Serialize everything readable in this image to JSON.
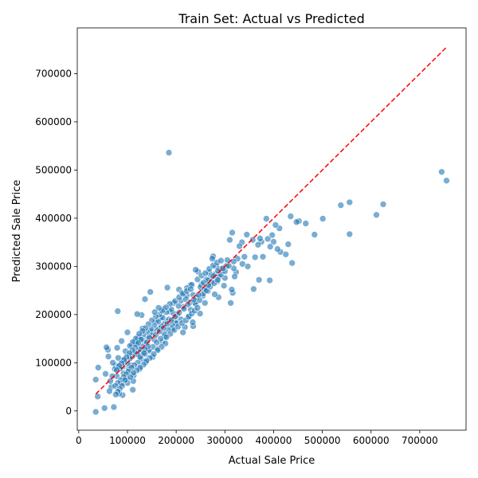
{
  "chart_data": {
    "type": "scatter",
    "title": "Train Set: Actual vs Predicted",
    "xlabel": "Actual Sale Price",
    "ylabel": "Predicted Sale Price",
    "xlim": [
      -3000,
      795000
    ],
    "ylim": [
      -40000,
      795000
    ],
    "xticks": [
      0,
      100000,
      200000,
      300000,
      400000,
      500000,
      600000,
      700000
    ],
    "yticks": [
      0,
      100000,
      200000,
      300000,
      400000,
      500000,
      600000,
      700000
    ],
    "xtick_labels": [
      "0",
      "100000",
      "200000",
      "300000",
      "400000",
      "500000",
      "600000",
      "700000"
    ],
    "ytick_labels": [
      "0",
      "100000",
      "200000",
      "300000",
      "400000",
      "500000",
      "600000",
      "700000"
    ],
    "grid": false,
    "point_color": "#1f77b4",
    "reference_line": {
      "label": "",
      "x": [
        34900,
        755000
      ],
      "y": [
        34900,
        755000
      ],
      "color": "#ff0000",
      "style": "dashed"
    },
    "points": [
      [
        745000,
        496000
      ],
      [
        755000,
        478000
      ],
      [
        625000,
        429000
      ],
      [
        611000,
        407000
      ],
      [
        556000,
        433000
      ],
      [
        538000,
        427000
      ],
      [
        556000,
        367000
      ],
      [
        501000,
        399000
      ],
      [
        484000,
        366000
      ],
      [
        466000,
        389000
      ],
      [
        452000,
        394000
      ],
      [
        447000,
        392000
      ],
      [
        435000,
        404000
      ],
      [
        438000,
        307000
      ],
      [
        430000,
        346000
      ],
      [
        425000,
        325000
      ],
      [
        414000,
        330000
      ],
      [
        412000,
        379000
      ],
      [
        408000,
        336000
      ],
      [
        404000,
        386000
      ],
      [
        400000,
        351000
      ],
      [
        397000,
        365000
      ],
      [
        392000,
        271000
      ],
      [
        393000,
        341000
      ],
      [
        388000,
        357000
      ],
      [
        385000,
        399000
      ],
      [
        378000,
        320000
      ],
      [
        375000,
        351000
      ],
      [
        372000,
        358000
      ],
      [
        370000,
        272000
      ],
      [
        368000,
        345000
      ],
      [
        362000,
        319000
      ],
      [
        359000,
        253000
      ],
      [
        357000,
        355000
      ],
      [
        347000,
        300000
      ],
      [
        345000,
        366000
      ],
      [
        340000,
        320000
      ],
      [
        336000,
        305000
      ],
      [
        335000,
        350000
      ],
      [
        330000,
        342000
      ],
      [
        326000,
        316000
      ],
      [
        323000,
        288000
      ],
      [
        320000,
        279000
      ],
      [
        318000,
        296000
      ],
      [
        316000,
        245000
      ],
      [
        314000,
        252000
      ],
      [
        312000,
        224000
      ],
      [
        315000,
        370000
      ],
      [
        310000,
        355000
      ],
      [
        305000,
        313000
      ],
      [
        303000,
        301000
      ],
      [
        300000,
        276000
      ],
      [
        298000,
        260000
      ],
      [
        295000,
        291000
      ],
      [
        290000,
        295000
      ],
      [
        287000,
        236000
      ],
      [
        285000,
        269000
      ],
      [
        282000,
        300000
      ],
      [
        279000,
        242000
      ],
      [
        276000,
        321000
      ],
      [
        274000,
        316000
      ],
      [
        271000,
        278000
      ],
      [
        268000,
        287000
      ],
      [
        265000,
        249000
      ],
      [
        262000,
        273000
      ],
      [
        259000,
        224000
      ],
      [
        255000,
        239000
      ],
      [
        252000,
        262000
      ],
      [
        249000,
        202000
      ],
      [
        245000,
        289000
      ],
      [
        240000,
        293000
      ],
      [
        238000,
        226000
      ],
      [
        235000,
        176000
      ],
      [
        234000,
        184000
      ],
      [
        229000,
        261000
      ],
      [
        225000,
        195000
      ],
      [
        222000,
        240000
      ],
      [
        218000,
        174000
      ],
      [
        214000,
        163000
      ],
      [
        210000,
        229000
      ],
      [
        206000,
        252000
      ],
      [
        202000,
        199000
      ],
      [
        198000,
        187000
      ],
      [
        195000,
        224000
      ],
      [
        192000,
        170000
      ],
      [
        188000,
        206000
      ],
      [
        185000,
        536000
      ],
      [
        182000,
        256000
      ],
      [
        180000,
        186000
      ],
      [
        177000,
        155000
      ],
      [
        174000,
        211000
      ],
      [
        171000,
        143000
      ],
      [
        168000,
        193000
      ],
      [
        165000,
        171000
      ],
      [
        162000,
        129000
      ],
      [
        158000,
        186000
      ],
      [
        155000,
        148000
      ],
      [
        152000,
        112000
      ],
      [
        149000,
        165000
      ],
      [
        147000,
        247000
      ],
      [
        144000,
        128000
      ],
      [
        141000,
        153000
      ],
      [
        138000,
        101000
      ],
      [
        136000,
        232000
      ],
      [
        134000,
        144000
      ],
      [
        131000,
        171000
      ],
      [
        129000,
        199000
      ],
      [
        127000,
        123000
      ],
      [
        125000,
        87000
      ],
      [
        122000,
        153000
      ],
      [
        120000,
        201000
      ],
      [
        118000,
        118000
      ],
      [
        116000,
        145000
      ],
      [
        113000,
        74000
      ],
      [
        111000,
        44000
      ],
      [
        109000,
        137000
      ],
      [
        107000,
        95000
      ],
      [
        104000,
        115000
      ],
      [
        102000,
        86000
      ],
      [
        100000,
        163000
      ],
      [
        98000,
        67000
      ],
      [
        96000,
        124000
      ],
      [
        94000,
        108000
      ],
      [
        92000,
        78000
      ],
      [
        90000,
        33000
      ],
      [
        88000,
        145000
      ],
      [
        87000,
        56000
      ],
      [
        85000,
        97000
      ],
      [
        83000,
        36000
      ],
      [
        81000,
        110000
      ],
      [
        80000,
        207000
      ],
      [
        79000,
        131000
      ],
      [
        78000,
        72000
      ],
      [
        76000,
        94000
      ],
      [
        74000,
        87000
      ],
      [
        72000,
        8000
      ],
      [
        70000,
        100000
      ],
      [
        69000,
        72000
      ],
      [
        67000,
        50000
      ],
      [
        65000,
        62000
      ],
      [
        63000,
        41000
      ],
      [
        61000,
        113000
      ],
      [
        60000,
        127000
      ],
      [
        57000,
        132000
      ],
      [
        55000,
        77000
      ],
      [
        53000,
        6000
      ],
      [
        40000,
        90000
      ],
      [
        39000,
        30000
      ],
      [
        35000,
        65000
      ],
      [
        35000,
        -2000
      ],
      [
        215000,
        216000
      ],
      [
        205000,
        218000
      ],
      [
        195000,
        202000
      ],
      [
        185000,
        190000
      ],
      [
        175000,
        180000
      ],
      [
        170000,
        176000
      ],
      [
        160000,
        168000
      ],
      [
        150000,
        157000
      ],
      [
        145000,
        152000
      ],
      [
        140000,
        142000
      ],
      [
        130000,
        134000
      ],
      [
        125000,
        128000
      ],
      [
        120000,
        118000
      ],
      [
        115000,
        122000
      ],
      [
        110000,
        113000
      ],
      [
        105000,
        109000
      ],
      [
        100000,
        98000
      ],
      [
        95000,
        101000
      ],
      [
        90000,
        92000
      ],
      [
        85000,
        88000
      ],
      [
        220000,
        232000
      ],
      [
        228000,
        225000
      ],
      [
        235000,
        241000
      ],
      [
        242000,
        236000
      ],
      [
        250000,
        257000
      ],
      [
        258000,
        253000
      ],
      [
        265000,
        271000
      ],
      [
        272000,
        268000
      ],
      [
        280000,
        284000
      ],
      [
        288000,
        279000
      ],
      [
        190000,
        211000
      ],
      [
        180000,
        205000
      ],
      [
        172000,
        194000
      ],
      [
        163000,
        185000
      ],
      [
        155000,
        178000
      ],
      [
        148000,
        170000
      ],
      [
        140000,
        164000
      ],
      [
        132000,
        158000
      ],
      [
        126000,
        149000
      ],
      [
        118000,
        139000
      ],
      [
        210000,
        190000
      ],
      [
        200000,
        182000
      ],
      [
        192000,
        178000
      ],
      [
        183000,
        169000
      ],
      [
        176000,
        160000
      ],
      [
        168000,
        150000
      ],
      [
        160000,
        142000
      ],
      [
        152000,
        133000
      ],
      [
        144000,
        125000
      ],
      [
        136000,
        118000
      ],
      [
        128000,
        108000
      ],
      [
        121000,
        100000
      ],
      [
        114000,
        95000
      ],
      [
        108000,
        90000
      ],
      [
        102000,
        82000
      ],
      [
        97000,
        76000
      ],
      [
        92000,
        70000
      ],
      [
        86000,
        64000
      ],
      [
        80000,
        58000
      ],
      [
        75000,
        52000
      ],
      [
        230000,
        210000
      ],
      [
        240000,
        222000
      ],
      [
        248000,
        230000
      ],
      [
        255000,
        243000
      ],
      [
        262000,
        250000
      ],
      [
        270000,
        258000
      ],
      [
        278000,
        265000
      ],
      [
        285000,
        272000
      ],
      [
        292000,
        283000
      ],
      [
        300000,
        290000
      ],
      [
        212000,
        245000
      ],
      [
        222000,
        255000
      ],
      [
        232000,
        262000
      ],
      [
        244000,
        273000
      ],
      [
        252000,
        281000
      ],
      [
        260000,
        286000
      ],
      [
        268000,
        295000
      ],
      [
        276000,
        302000
      ],
      [
        284000,
        308000
      ],
      [
        292000,
        312000
      ],
      [
        165000,
        200000
      ],
      [
        158000,
        196000
      ],
      [
        150000,
        188000
      ],
      [
        143000,
        180000
      ],
      [
        137000,
        172000
      ],
      [
        131000,
        166000
      ],
      [
        124000,
        160000
      ],
      [
        117000,
        150000
      ],
      [
        111000,
        143000
      ],
      [
        105000,
        135000
      ],
      [
        178000,
        140000
      ],
      [
        170000,
        133000
      ],
      [
        162000,
        126000
      ],
      [
        154000,
        118000
      ],
      [
        146000,
        110000
      ],
      [
        139000,
        104000
      ],
      [
        133000,
        96000
      ],
      [
        126000,
        90000
      ],
      [
        119000,
        84000
      ],
      [
        112000,
        79000
      ],
      [
        198000,
        228000
      ],
      [
        206000,
        236000
      ],
      [
        214000,
        243000
      ],
      [
        222000,
        249000
      ],
      [
        230000,
        253000
      ],
      [
        187000,
        222000
      ],
      [
        179000,
        215000
      ],
      [
        171000,
        208000
      ],
      [
        164000,
        214000
      ],
      [
        156000,
        205000
      ],
      [
        196000,
        168000
      ],
      [
        204000,
        175000
      ],
      [
        212000,
        182000
      ],
      [
        220000,
        188000
      ],
      [
        226000,
        196000
      ],
      [
        232000,
        202000
      ],
      [
        238000,
        208000
      ],
      [
        244000,
        214000
      ],
      [
        188000,
        160000
      ],
      [
        180000,
        153000
      ],
      [
        128000,
        148000
      ],
      [
        122000,
        141000
      ],
      [
        116000,
        132000
      ],
      [
        110000,
        126000
      ],
      [
        104000,
        120000
      ],
      [
        98000,
        112000
      ],
      [
        93000,
        106000
      ],
      [
        88000,
        99000
      ],
      [
        83000,
        93000
      ],
      [
        78000,
        85000
      ],
      [
        142000,
        134000
      ],
      [
        136000,
        128000
      ],
      [
        158000,
        158000
      ],
      [
        166000,
        165000
      ],
      [
        174000,
        172000
      ],
      [
        182000,
        181000
      ],
      [
        190000,
        188000
      ],
      [
        198000,
        196000
      ],
      [
        206000,
        204000
      ],
      [
        216000,
        212000
      ],
      [
        224000,
        221000
      ],
      [
        236000,
        231000
      ],
      [
        246000,
        241000
      ],
      [
        256000,
        266000
      ],
      [
        266000,
        261000
      ],
      [
        276000,
        280000
      ],
      [
        286000,
        291000
      ],
      [
        296000,
        296000
      ],
      [
        308000,
        301000
      ],
      [
        318000,
        310000
      ],
      [
        112000,
        62000
      ],
      [
        106000,
        70000
      ],
      [
        100000,
        58000
      ],
      [
        95000,
        64000
      ],
      [
        89000,
        52000
      ],
      [
        84000,
        46000
      ],
      [
        80000,
        40000
      ],
      [
        76000,
        34000
      ],
      [
        126000,
        112000
      ],
      [
        134000,
        120000
      ]
    ]
  }
}
